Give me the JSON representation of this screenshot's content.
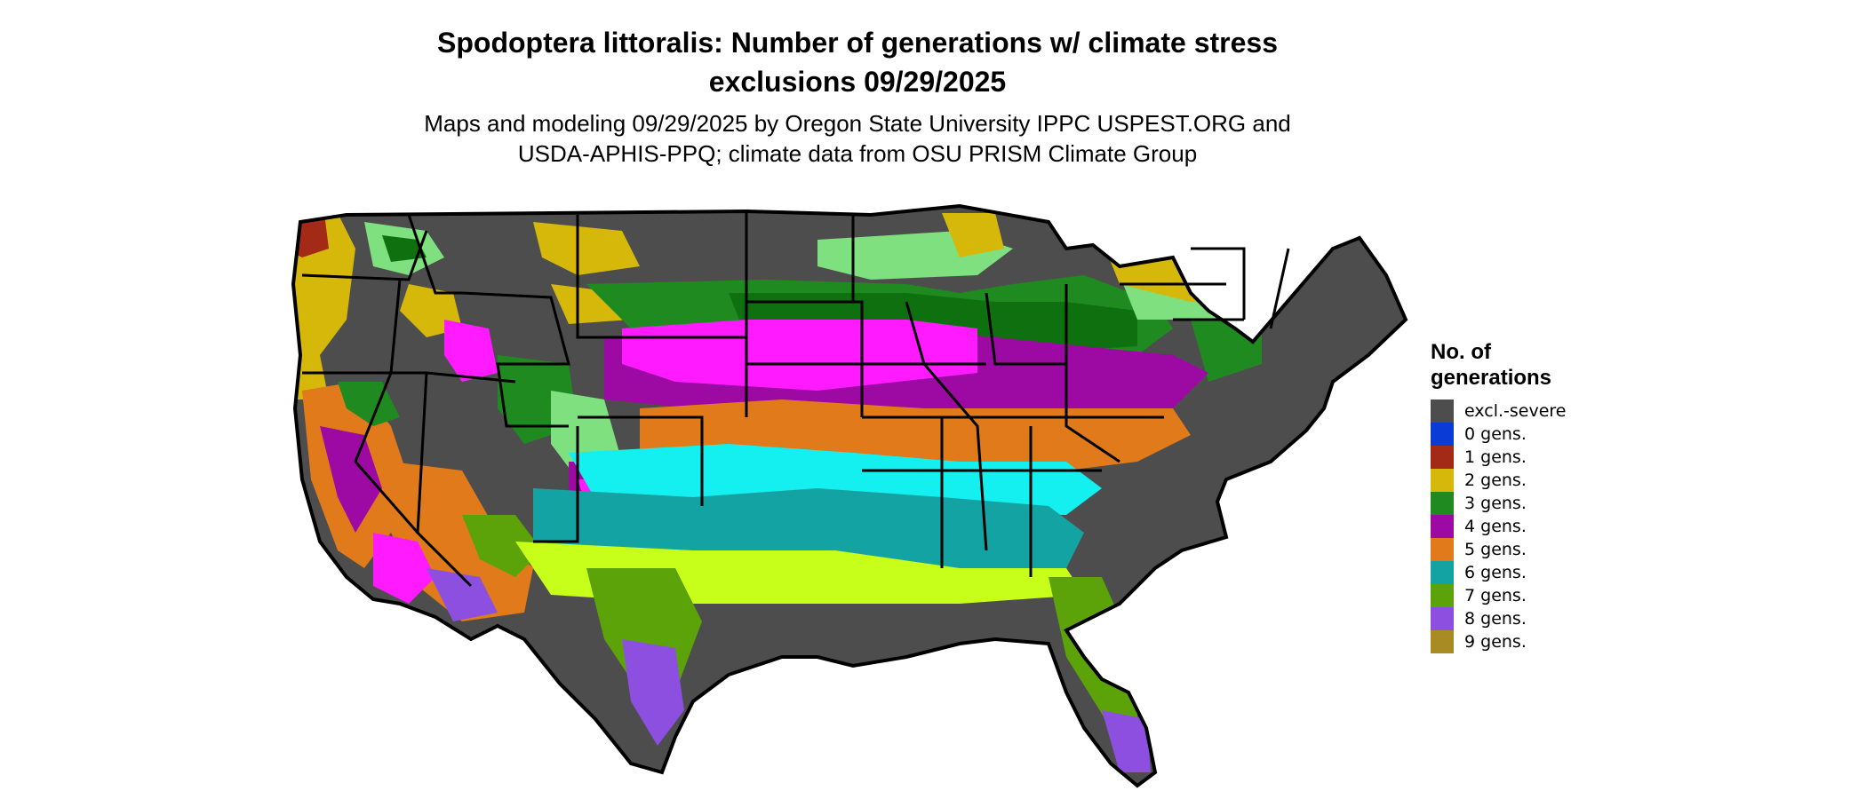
{
  "title_line1": "Spodoptera littoralis: Number of generations w/ climate stress",
  "title_line2": "exclusions 09/29/2025",
  "subtitle_line1": "Maps and modeling 09/29/2025 by Oregon State University IPPC USPEST.ORG and",
  "subtitle_line2": "USDA-APHIS-PPQ; climate data from OSU PRISM Climate Group",
  "legend": {
    "title_line1": "No. of",
    "title_line2": "generations",
    "items": [
      {
        "label": "excl.-severe",
        "color": "#4d4d4d"
      },
      {
        "label": "0 gens.",
        "color": "#0a3bd6"
      },
      {
        "label": "1 gens.",
        "color": "#a32a16"
      },
      {
        "label": "2 gens.",
        "color": "#d6b80a"
      },
      {
        "label": "3 gens.",
        "color": "#1f8a1f"
      },
      {
        "label": "4 gens.",
        "color": "#9c0aa3"
      },
      {
        "label": "5 gens.",
        "color": "#e07a1a"
      },
      {
        "label": "6 gens.",
        "color": "#14a3a3"
      },
      {
        "label": "7 gens.",
        "color": "#5ca30a"
      },
      {
        "label": "8 gens.",
        "color": "#8c4fe0"
      },
      {
        "label": "9 gens.",
        "color": "#a88c23"
      }
    ]
  },
  "map_colors": {
    "excluded": "#4d4d4d",
    "two": "#d6b80a",
    "light_green": "#7ee07e",
    "dark_green": "#0f700f",
    "three": "#1f8a1f",
    "magenta": "#ff1aff",
    "purple": "#9c0aa3",
    "orange": "#e07a1a",
    "cyan": "#14f0f0",
    "teal": "#14a3a3",
    "lime": "#c8ff1a",
    "seven": "#5ca30a",
    "violet": "#8c4fe0",
    "red": "#a32a16",
    "border": "#000000"
  }
}
